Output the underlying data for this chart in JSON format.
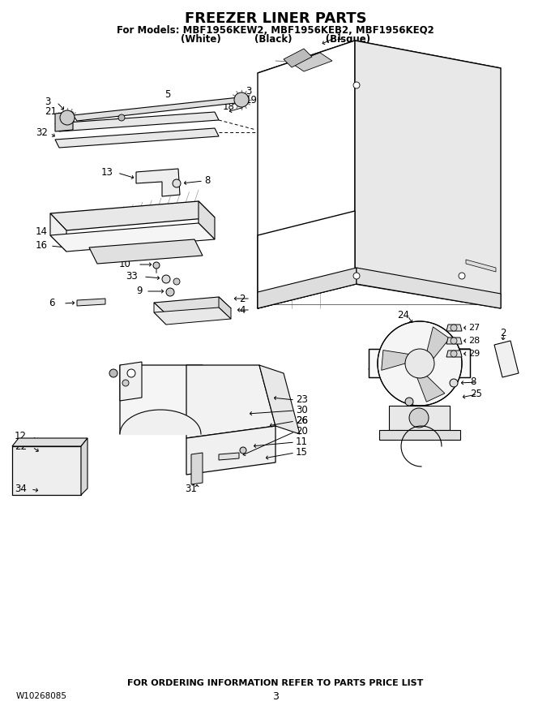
{
  "title": "FREEZER LINER PARTS",
  "subtitle1": "For Models: MBF1956KEW2, MBF1956KEB2, MBF1956KEQ2",
  "subtitle2": "(White)          (Black)          (Bisque)",
  "footer_center": "FOR ORDERING INFORMATION REFER TO PARTS PRICE LIST",
  "footer_left": "W10268085",
  "footer_page": "3",
  "bg_color": "#ffffff",
  "text_color": "#000000",
  "figsize": [
    6.8,
    8.8
  ],
  "dpi": 100
}
